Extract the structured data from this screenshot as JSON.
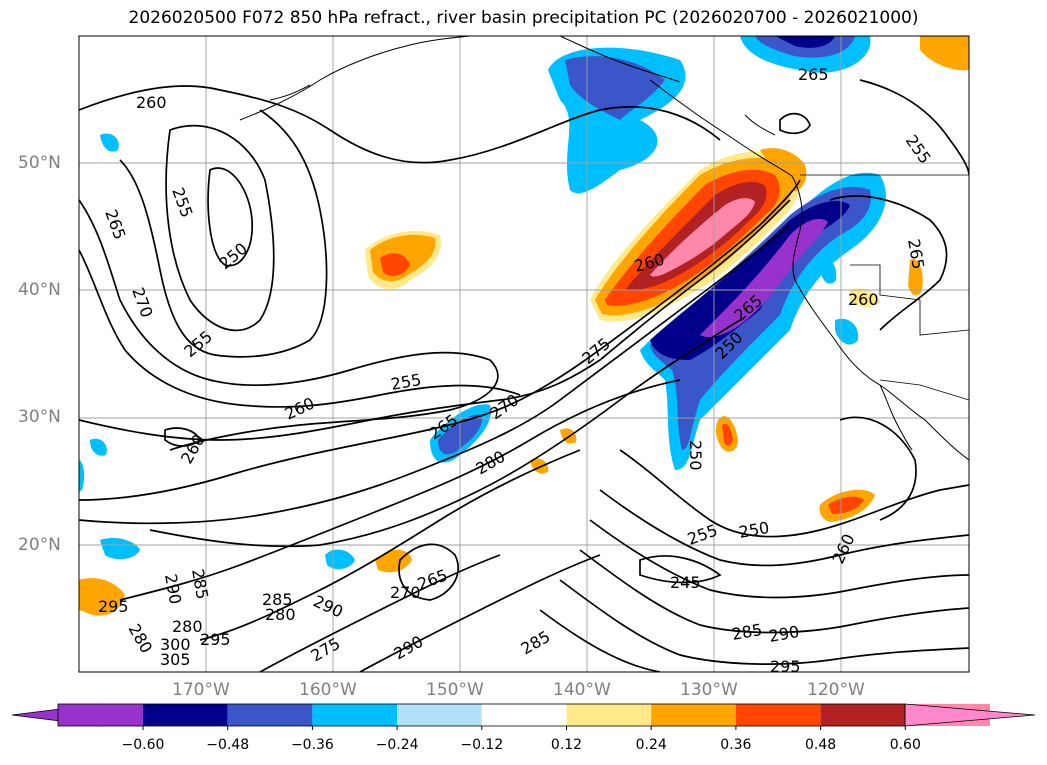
{
  "title": "2026020500 F072 850 hPa refract., river basin precipitation PC (2026020700 - 2026021000)",
  "lat_labels": [
    "50°N",
    "40°N",
    "30°N",
    "20°N"
  ],
  "lon_labels": [
    "170°W",
    "160°W",
    "150°W",
    "140°W",
    "130°W",
    "120°W"
  ],
  "contour_labels": [
    "260",
    "265",
    "255",
    "250",
    "270",
    "255",
    "255",
    "260",
    "260",
    "265",
    "270",
    "280",
    "275",
    "265",
    "260",
    "265",
    "255",
    "250",
    "260",
    "250",
    "255",
    "250",
    "245",
    "260",
    "285",
    "290",
    "295",
    "265",
    "290",
    "280",
    "300",
    "305",
    "295",
    "285",
    "280",
    "275",
    "285",
    "290",
    "290",
    "280",
    "285",
    "265",
    "270",
    "295"
  ],
  "colorbar": {
    "ticks": [
      "−0.60",
      "−0.48",
      "−0.36",
      "−0.24",
      "−0.12",
      "0.12",
      "0.24",
      "0.36",
      "0.48",
      "0.60"
    ],
    "colors": [
      "#9932cc",
      "#00008b",
      "#3a56c8",
      "#00bfff",
      "#b0e0f8",
      "#ffffff",
      "#ffe98a",
      "#ffa500",
      "#ff4500",
      "#b22222",
      "#ff88aa",
      "#ff88cc"
    ]
  }
}
